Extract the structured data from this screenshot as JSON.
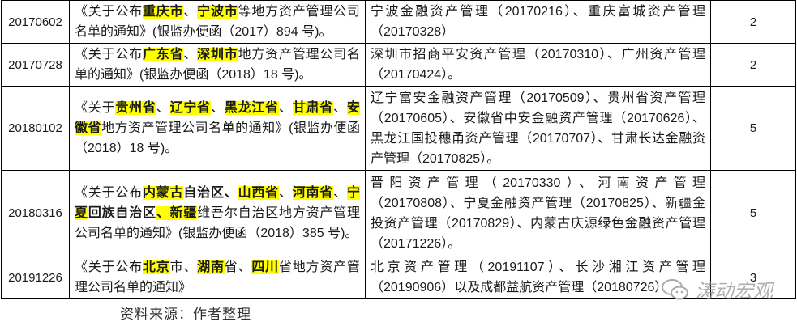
{
  "table": {
    "rows": [
      {
        "date": "20170602",
        "notice": [
          {
            "t": "《关于公布"
          },
          {
            "t": "重庆市",
            "hl": true,
            "b": true
          },
          {
            "t": "、"
          },
          {
            "t": "宁波市",
            "hl": true,
            "b": true
          },
          {
            "t": "等地方资产管理公司名单的通知》(银监办便函（2017）894 号)。"
          }
        ],
        "companies": "宁波金融资产管理（20170216）、重庆富城资产管理（20170328）",
        "count": "2"
      },
      {
        "date": "20170728",
        "notice": [
          {
            "t": "《关于公布"
          },
          {
            "t": "广东省",
            "hl": true,
            "b": true
          },
          {
            "t": "、"
          },
          {
            "t": "深圳市",
            "hl": true,
            "b": true
          },
          {
            "t": "地方资产管理公司名单的通知》(银监办便函（2018）18 号)。"
          }
        ],
        "companies": "深圳市招商平安资产管理（20170310）、广州资产管理（20170424）。",
        "count": "2"
      },
      {
        "date": "20180102",
        "notice": [
          {
            "t": "《关于"
          },
          {
            "t": "贵州省",
            "hl": true,
            "b": true
          },
          {
            "t": "、"
          },
          {
            "t": "辽宁省",
            "hl": true,
            "b": true
          },
          {
            "t": "、"
          },
          {
            "t": "黑龙江省",
            "hl": true,
            "b": true
          },
          {
            "t": "、"
          },
          {
            "t": "甘肃省",
            "hl": true,
            "b": true
          },
          {
            "t": "、"
          },
          {
            "t": "安徽省",
            "hl": true,
            "b": true
          },
          {
            "t": "地方资产管理公司名单的通知》(银监办便函（2018）18 号)。"
          }
        ],
        "companies": "辽宁富安金融资产管理（20170509）、贵州省资产管理（20170605）、安徽省中安金融资产管理（20170626）、黑龙江国投穗甬资产管理（20170707）、甘肃长达金融资产管理（20170825）。",
        "count": "5"
      },
      {
        "date": "20180316",
        "notice": [
          {
            "t": "《关于公布"
          },
          {
            "t": "内蒙古",
            "hl": true,
            "b": true
          },
          {
            "t": "自治区、",
            "b": true
          },
          {
            "t": "山西省",
            "hl": true,
            "b": true
          },
          {
            "t": "、"
          },
          {
            "t": "河南省",
            "hl": true,
            "b": true
          },
          {
            "t": "、"
          },
          {
            "t": "宁夏",
            "hl": true,
            "b": true
          },
          {
            "t": "回族自治区",
            "b": true
          },
          {
            "t": "、新疆",
            "hl": true,
            "b": true
          },
          {
            "t": "维吾尔自治区地方资产管理公司名单的通知》(银监办便函（2018）385 号)。"
          }
        ],
        "companies": "晋阳资产管理（20170330）、河南资产管理（20170808）、宁夏金融资产管理（20170825）、新疆金投资产管理（20170829）、内蒙古庆源绿色金融资产管理（20171226）。",
        "count": "5"
      },
      {
        "date": "20191226",
        "notice": [
          {
            "t": "《关于公布"
          },
          {
            "t": "北京",
            "hl": true,
            "b": true
          },
          {
            "t": "市、"
          },
          {
            "t": "湖南",
            "hl": true,
            "b": true
          },
          {
            "t": "省、"
          },
          {
            "t": "四川",
            "hl": true,
            "b": true
          },
          {
            "t": "省地方资产管理公司名单的通知》"
          }
        ],
        "companies": "北京资产管理（20191107）、长沙湘江资产管理（20190906）以及成都益航资产管理（20180726）",
        "count": "3"
      }
    ]
  },
  "caption": "资料来源：作者整理",
  "watermark": {
    "text": "涛动宏观",
    "icon": "wechat-icon"
  },
  "colors": {
    "highlight": "#ffff00",
    "border": "#000000"
  }
}
